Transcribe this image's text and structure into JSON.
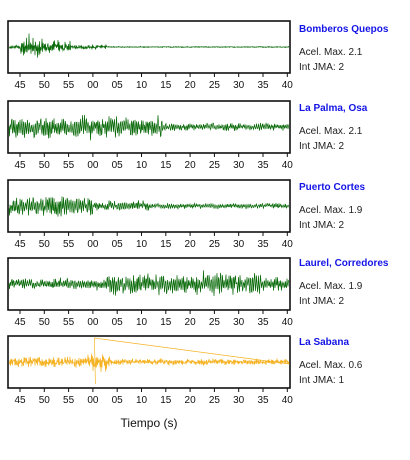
{
  "chart_data": {
    "type": "line",
    "x_tick_labels": [
      "45",
      "50",
      "55",
      "00",
      "05",
      "10",
      "15",
      "20",
      "25",
      "30",
      "35",
      "40"
    ],
    "xlabel": "Tiempo (s)",
    "grid": false,
    "panels": [
      {
        "station": "Bomberos Quepos",
        "acel_label": "Acel. Max. 2.1",
        "int_label": "Int JMA: 2",
        "acel_max": 2.1,
        "int_jma": 2,
        "color": "#0b6b0b"
      },
      {
        "station": "La Palma, Osa",
        "acel_label": "Acel. Max. 2.1",
        "int_label": "Int JMA: 2",
        "acel_max": 2.1,
        "int_jma": 2,
        "color": "#0b6b0b"
      },
      {
        "station": "Puerto Cortes",
        "acel_label": "Acel. Max. 1.9",
        "int_label": "Int JMA: 2",
        "acel_max": 1.9,
        "int_jma": 2,
        "color": "#0b6b0b"
      },
      {
        "station": "Laurel, Corredores",
        "acel_label": "Acel. Max. 1.9",
        "int_label": "Int JMA: 2",
        "acel_max": 1.9,
        "int_jma": 2,
        "color": "#0b6b0b"
      },
      {
        "station": "La Sabana",
        "acel_label": "Acel. Max. 0.6",
        "int_label": "Int JMA: 1",
        "acel_max": 0.6,
        "int_jma": 1,
        "color": "#f5b324"
      }
    ]
  }
}
